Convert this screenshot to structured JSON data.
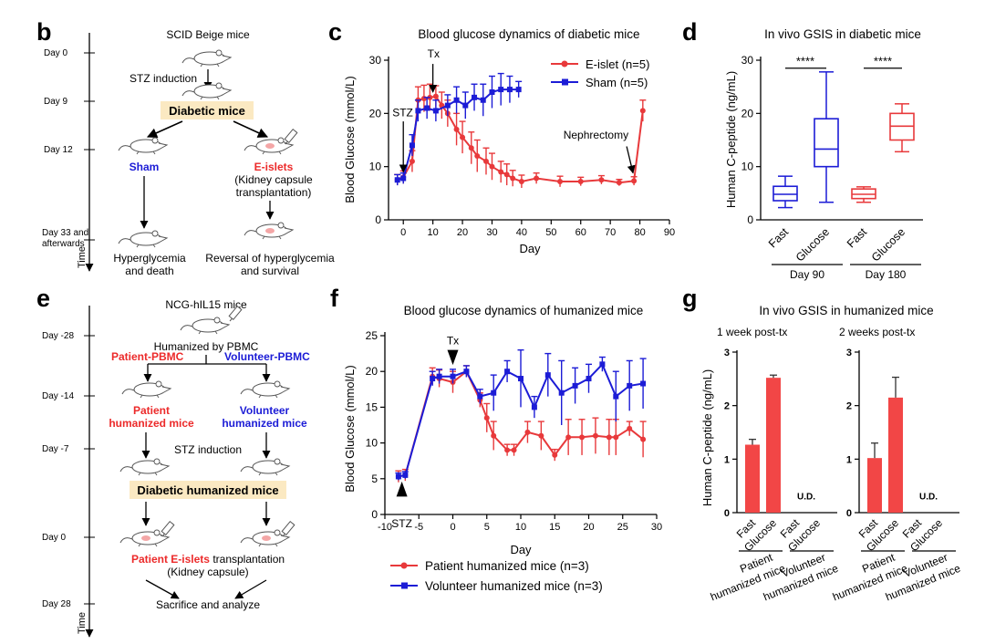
{
  "panel_labels": {
    "b": "b",
    "c": "c",
    "d": "d",
    "e": "e",
    "f": "f",
    "g": "g"
  },
  "colors": {
    "red": "#e8393b",
    "blue": "#1c1cd6",
    "bright_red": "#ec2a2a",
    "highlight": "#fbe9c2"
  },
  "schematic_b": {
    "time_label": "Time",
    "days": [
      "Day 0",
      "Day 9",
      "Day 12",
      "Day 33 and",
      "afterwards"
    ],
    "top": "SCID Beige mice",
    "induction": "STZ induction",
    "diabetic": "Diabetic mice",
    "sham": "Sham",
    "eislets": "E-islets",
    "kidney1": "(Kidney capsule",
    "kidney2": "transplantation)",
    "out_left1": "Hyperglycemia",
    "out_left2": "and death",
    "out_right1": "Reversal of hyperglycemia",
    "out_right2": "and survival",
    "mouse_icon": "mouse-icon",
    "syringe_icon": "syringe-icon"
  },
  "schematic_e": {
    "time_label": "Time",
    "days": [
      "Day -28",
      "Day -14",
      "Day -7",
      "Day 0",
      "Day 28"
    ],
    "top": "NCG-hIL15 mice",
    "humanized_by": "Humanized by PBMC",
    "patient_pbmc": "Patient-PBMC",
    "volunteer_pbmc": "Volunteer-PBMC",
    "patient_mice1": "Patient",
    "patient_mice2": "humanized mice",
    "volunteer_mice1": "Volunteer",
    "volunteer_mice2": "humanized mice",
    "induction": "STZ induction",
    "diabetic": "Diabetic humanized mice",
    "transplant_red": "Patient E-islets",
    "transplant_black": " transplantation",
    "kidney": "(Kidney capsule)",
    "sacrifice": "Sacrifice and analyze"
  },
  "chart_data": [
    {
      "id": "c",
      "type": "line",
      "title": "Blood glucose dynamics of diabetic mice",
      "xlabel": "Day",
      "ylabel": "Blood Glucose (mmol/L)",
      "xlim": [
        -5,
        90
      ],
      "ylim": [
        0,
        30
      ],
      "xticks": [
        0,
        10,
        20,
        30,
        40,
        50,
        60,
        70,
        80,
        90
      ],
      "yticks": [
        0,
        10,
        20,
        30
      ],
      "legend_position": "top-right",
      "annotations": [
        {
          "text": "STZ",
          "x": 0,
          "y": 8
        },
        {
          "text": "Tx",
          "x": 10,
          "y": 23
        },
        {
          "text": "Nephrectomy",
          "x": 78,
          "y": 8
        }
      ],
      "series": [
        {
          "name": "E-islet (n=5)",
          "color": "#e8393b",
          "x": [
            -2,
            0,
            3,
            5,
            7,
            9,
            11,
            13,
            15,
            18,
            20,
            23,
            25,
            28,
            30,
            33,
            35,
            37,
            40,
            45,
            53,
            60,
            67,
            73,
            78,
            81
          ],
          "y": [
            7.5,
            8,
            11,
            22.5,
            22.8,
            23,
            23.2,
            21.5,
            20,
            17,
            15.5,
            13.5,
            12,
            11,
            10,
            9,
            8.5,
            7.8,
            7.2,
            7.8,
            7.2,
            7.2,
            7.5,
            7,
            7.3,
            20.5
          ],
          "err": [
            1,
            1.2,
            2,
            2.5,
            2.5,
            2.5,
            2,
            2.5,
            2.5,
            3,
            3,
            3,
            3,
            2.5,
            2.5,
            2,
            2,
            1.5,
            1.2,
            1,
            1,
            0.8,
            0.8,
            0.6,
            0.8,
            2
          ]
        },
        {
          "name": "Sham (n=5)",
          "color": "#1c1cd6",
          "x": [
            -2,
            0,
            3,
            5,
            8,
            11,
            15,
            18,
            21,
            24,
            27,
            30,
            33,
            36,
            39
          ],
          "y": [
            7.5,
            7.8,
            14,
            20.5,
            21,
            20.5,
            21.5,
            22.5,
            21.5,
            23,
            22.5,
            24,
            24.5,
            24.5,
            24.5
          ],
          "err": [
            1,
            1,
            2,
            2,
            2,
            2,
            2,
            2.5,
            2.5,
            2.5,
            3,
            3,
            3,
            2.5,
            1.5
          ]
        }
      ]
    },
    {
      "id": "d",
      "type": "box",
      "title": "In vivo GSIS in diabetic mice",
      "ylabel": "Human C-peptide (ng/mL)",
      "ylim": [
        0,
        30
      ],
      "yticks": [
        0,
        10,
        20,
        30
      ],
      "categories": [
        "Fast",
        "Glucose",
        "Fast",
        "Glucose"
      ],
      "groups": [
        "Day 90",
        "Day 180"
      ],
      "significance": [
        "****",
        "****"
      ],
      "boxes": [
        {
          "label": "Fast",
          "min": 2.3,
          "q1": 3.6,
          "median": 4.8,
          "q3": 6.3,
          "max": 8.2,
          "color": "#1c1cd6"
        },
        {
          "label": "Glucose",
          "min": 3.3,
          "q1": 10,
          "median": 13.3,
          "q3": 19,
          "max": 27.8,
          "color": "#1c1cd6"
        },
        {
          "label": "Fast",
          "min": 3.3,
          "q1": 4,
          "median": 4.8,
          "q3": 5.8,
          "max": 6.2,
          "color": "#e8393b"
        },
        {
          "label": "Glucose",
          "min": 12.8,
          "q1": 15,
          "median": 17.6,
          "q3": 20,
          "max": 21.8,
          "color": "#e8393b"
        }
      ]
    },
    {
      "id": "f",
      "type": "line",
      "title": "Blood glucose dynamics of humanized mice",
      "xlabel": "Day",
      "ylabel": "Blood Glucose (mmol/L)",
      "xlim": [
        -10,
        30
      ],
      "ylim": [
        0,
        25
      ],
      "xticks": [
        -10,
        -5,
        0,
        5,
        10,
        15,
        20,
        25,
        30
      ],
      "yticks": [
        0,
        5,
        10,
        15,
        20,
        25
      ],
      "legend_position": "bottom",
      "annotations": [
        {
          "text": "STZ",
          "x": -7.5,
          "y": 4
        },
        {
          "text": "Tx",
          "x": 0,
          "y": 21
        }
      ],
      "series": [
        {
          "name": "Patient humanized mice (n=3)",
          "color": "#e8393b",
          "x": [
            -8,
            -7,
            -3,
            -2,
            0,
            2,
            4,
            5,
            6,
            8,
            9,
            11,
            13,
            15,
            17,
            19,
            21,
            23,
            24,
            26,
            28
          ],
          "y": [
            5.3,
            5.5,
            19.3,
            19,
            18.5,
            20,
            16,
            13.5,
            11,
            9,
            9,
            11.5,
            11,
            8.3,
            10.8,
            10.8,
            11,
            10.8,
            10.8,
            12,
            10.5
          ],
          "err": [
            0.8,
            0.8,
            1.2,
            1.2,
            1.5,
            0.8,
            1,
            2,
            2,
            0.8,
            0.8,
            1.5,
            2,
            0.8,
            2.5,
            2.5,
            2.5,
            2.5,
            2.5,
            1,
            2.5
          ]
        },
        {
          "name": "Volunteer humanized mice (n=3)",
          "color": "#1c1cd6",
          "x": [
            -8,
            -7,
            -3,
            -2,
            0,
            2,
            4,
            6,
            8,
            10,
            12,
            14,
            16,
            18,
            20,
            22,
            24,
            26,
            28
          ],
          "y": [
            5.3,
            5.5,
            19,
            19.3,
            19.3,
            20,
            16.5,
            17,
            20,
            19,
            15,
            19.5,
            17,
            18,
            19,
            21,
            16.5,
            18,
            18.3
          ],
          "err": [
            0.5,
            0.5,
            1,
            1,
            1,
            0.8,
            1,
            2.5,
            1.5,
            4,
            1.5,
            3,
            4.5,
            2.5,
            2,
            1,
            3.5,
            3.5,
            3.5
          ]
        }
      ]
    },
    {
      "id": "g",
      "type": "bar",
      "title": "In vivo GSIS in humanized mice",
      "ylabel": "Human C-peptide (ng/mL)",
      "ylim": [
        0,
        3
      ],
      "yticks": [
        0,
        1,
        2,
        3
      ],
      "categories": [
        "Fast",
        "Glucose",
        "Fast",
        "Glucose"
      ],
      "groups": [
        "Patient humanized mice",
        "Volunteer humanized mice"
      ],
      "not_detected_label": "U.D.",
      "subplots": [
        {
          "subtitle": "1 week post-tx",
          "values": [
            1.27,
            2.52,
            null,
            null
          ],
          "err": [
            0.1,
            0.05,
            null,
            null
          ]
        },
        {
          "subtitle": "2 weeks post-tx",
          "values": [
            1.02,
            2.15,
            null,
            null
          ],
          "err": [
            0.28,
            0.38,
            null,
            null
          ]
        }
      ]
    }
  ]
}
